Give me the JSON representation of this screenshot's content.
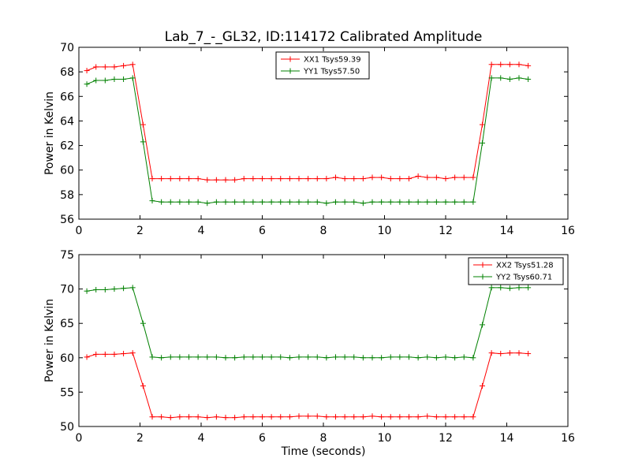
{
  "figure_title": "Lab_7_-_GL32, ID:114172 Calibrated Amplitude",
  "colors": {
    "red": "#ff0000",
    "green": "#008000",
    "axes": "#000000"
  },
  "chart_data": [
    {
      "type": "line",
      "ylabel": "Power in Kelvin",
      "xlabel": "",
      "xlim": [
        0,
        16
      ],
      "ylim": [
        56,
        70
      ],
      "xticks": [
        0,
        2,
        4,
        6,
        8,
        10,
        12,
        14,
        16
      ],
      "yticks": [
        56,
        58,
        60,
        62,
        64,
        66,
        68,
        70
      ],
      "grid": false,
      "legend_position": "top-center",
      "series": [
        {
          "name": "XX1 Tsys59.39",
          "color": "#ff0000",
          "x": [
            0.26,
            0.56,
            0.86,
            1.16,
            1.46,
            1.76,
            2.1,
            2.4,
            2.7,
            3.0,
            3.3,
            3.6,
            3.9,
            4.2,
            4.5,
            4.8,
            5.1,
            5.4,
            5.7,
            6.0,
            6.3,
            6.6,
            6.9,
            7.2,
            7.5,
            7.8,
            8.1,
            8.4,
            8.7,
            9.0,
            9.3,
            9.6,
            9.9,
            10.2,
            10.5,
            10.8,
            11.1,
            11.4,
            11.7,
            12.0,
            12.3,
            12.6,
            12.9,
            13.2,
            13.5,
            13.8,
            14.1,
            14.4,
            14.7
          ],
          "y": [
            68.1,
            68.4,
            68.4,
            68.4,
            68.5,
            68.6,
            63.7,
            59.3,
            59.3,
            59.3,
            59.3,
            59.3,
            59.3,
            59.2,
            59.2,
            59.2,
            59.2,
            59.3,
            59.3,
            59.3,
            59.3,
            59.3,
            59.3,
            59.3,
            59.3,
            59.3,
            59.3,
            59.4,
            59.3,
            59.3,
            59.3,
            59.4,
            59.4,
            59.3,
            59.3,
            59.3,
            59.5,
            59.4,
            59.4,
            59.3,
            59.4,
            59.4,
            59.4,
            63.7,
            68.6,
            68.6,
            68.6,
            68.6,
            68.5
          ]
        },
        {
          "name": "YY1 Tsys57.50",
          "color": "#008000",
          "x": [
            0.26,
            0.56,
            0.86,
            1.16,
            1.46,
            1.76,
            2.1,
            2.4,
            2.7,
            3.0,
            3.3,
            3.6,
            3.9,
            4.2,
            4.5,
            4.8,
            5.1,
            5.4,
            5.7,
            6.0,
            6.3,
            6.6,
            6.9,
            7.2,
            7.5,
            7.8,
            8.1,
            8.4,
            8.7,
            9.0,
            9.3,
            9.6,
            9.9,
            10.2,
            10.5,
            10.8,
            11.1,
            11.4,
            11.7,
            12.0,
            12.3,
            12.6,
            12.9,
            13.2,
            13.5,
            13.8,
            14.1,
            14.4,
            14.7
          ],
          "y": [
            67.0,
            67.3,
            67.3,
            67.4,
            67.4,
            67.5,
            62.3,
            57.5,
            57.4,
            57.4,
            57.4,
            57.4,
            57.4,
            57.3,
            57.4,
            57.4,
            57.4,
            57.4,
            57.4,
            57.4,
            57.4,
            57.4,
            57.4,
            57.4,
            57.4,
            57.4,
            57.3,
            57.4,
            57.4,
            57.4,
            57.3,
            57.4,
            57.4,
            57.4,
            57.4,
            57.4,
            57.4,
            57.4,
            57.4,
            57.4,
            57.4,
            57.4,
            57.4,
            62.2,
            67.5,
            67.5,
            67.4,
            67.5,
            67.4
          ]
        }
      ]
    },
    {
      "type": "line",
      "ylabel": "Power in Kelvin",
      "xlabel": "Time (seconds)",
      "xlim": [
        0,
        16
      ],
      "ylim": [
        50,
        75
      ],
      "xticks": [
        0,
        2,
        4,
        6,
        8,
        10,
        12,
        14,
        16
      ],
      "yticks": [
        50,
        55,
        60,
        65,
        70,
        75
      ],
      "grid": false,
      "legend_position": "top-right",
      "series": [
        {
          "name": "XX2 Tsys51.28",
          "color": "#ff0000",
          "x": [
            0.26,
            0.56,
            0.86,
            1.16,
            1.46,
            1.76,
            2.1,
            2.4,
            2.7,
            3.0,
            3.3,
            3.6,
            3.9,
            4.2,
            4.5,
            4.8,
            5.1,
            5.4,
            5.7,
            6.0,
            6.3,
            6.6,
            6.9,
            7.2,
            7.5,
            7.8,
            8.1,
            8.4,
            8.7,
            9.0,
            9.3,
            9.6,
            9.9,
            10.2,
            10.5,
            10.8,
            11.1,
            11.4,
            11.7,
            12.0,
            12.3,
            12.6,
            12.9,
            13.2,
            13.5,
            13.8,
            14.1,
            14.4,
            14.7
          ],
          "y": [
            60.1,
            60.5,
            60.5,
            60.5,
            60.6,
            60.7,
            55.9,
            51.4,
            51.4,
            51.3,
            51.4,
            51.4,
            51.4,
            51.3,
            51.4,
            51.3,
            51.3,
            51.4,
            51.4,
            51.4,
            51.4,
            51.4,
            51.4,
            51.5,
            51.5,
            51.5,
            51.4,
            51.4,
            51.4,
            51.4,
            51.4,
            51.5,
            51.4,
            51.4,
            51.4,
            51.4,
            51.4,
            51.5,
            51.4,
            51.4,
            51.4,
            51.4,
            51.4,
            55.9,
            60.7,
            60.6,
            60.7,
            60.7,
            60.6
          ]
        },
        {
          "name": "YY2 Tsys60.71",
          "color": "#008000",
          "x": [
            0.26,
            0.56,
            0.86,
            1.16,
            1.46,
            1.76,
            2.1,
            2.4,
            2.7,
            3.0,
            3.3,
            3.6,
            3.9,
            4.2,
            4.5,
            4.8,
            5.1,
            5.4,
            5.7,
            6.0,
            6.3,
            6.6,
            6.9,
            7.2,
            7.5,
            7.8,
            8.1,
            8.4,
            8.7,
            9.0,
            9.3,
            9.6,
            9.9,
            10.2,
            10.5,
            10.8,
            11.1,
            11.4,
            11.7,
            12.0,
            12.3,
            12.6,
            12.9,
            13.2,
            13.5,
            13.8,
            14.1,
            14.4,
            14.7
          ],
          "y": [
            69.7,
            69.9,
            69.9,
            70.0,
            70.1,
            70.2,
            65.0,
            60.1,
            60.0,
            60.1,
            60.1,
            60.1,
            60.1,
            60.1,
            60.1,
            60.0,
            60.0,
            60.1,
            60.1,
            60.1,
            60.1,
            60.1,
            60.0,
            60.1,
            60.1,
            60.1,
            60.0,
            60.1,
            60.1,
            60.1,
            60.0,
            60.0,
            60.0,
            60.1,
            60.1,
            60.1,
            60.0,
            60.1,
            60.0,
            60.1,
            60.0,
            60.1,
            60.0,
            64.8,
            70.2,
            70.2,
            70.1,
            70.2,
            70.2
          ]
        }
      ]
    }
  ]
}
